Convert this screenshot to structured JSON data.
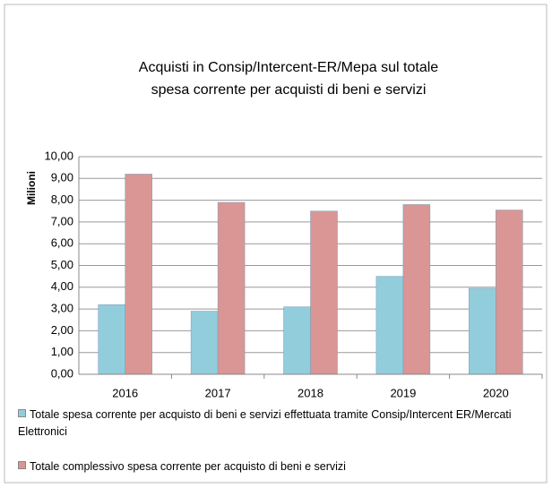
{
  "chart_data": {
    "type": "bar",
    "title": [
      "Acquisti in Consip/Intercent-ER/Mepa sul totale",
      "spesa corrente per acquisti di beni e servizi"
    ],
    "y_label": "Milioni",
    "categories": [
      "2016",
      "2017",
      "2018",
      "2019",
      "2020"
    ],
    "series": [
      {
        "name": "Totale spesa corrente per acquisto di beni e servizi effettuata tramite Consip/Intercent ER/Mercati Elettronici",
        "color": "#92cddc",
        "values": [
          3.2,
          2.9,
          3.1,
          4.5,
          3.95
        ]
      },
      {
        "name": "Totale complessivo spesa corrente per acquisto di beni e servizi",
        "color": "#d99694",
        "values": [
          9.2,
          7.9,
          7.5,
          7.8,
          7.55
        ]
      }
    ],
    "ylim": [
      0,
      10
    ],
    "yticks": [
      {
        "value": 0,
        "label": "0,00"
      },
      {
        "value": 1,
        "label": "1,00"
      },
      {
        "value": 2,
        "label": "2,00"
      },
      {
        "value": 3,
        "label": "3,00"
      },
      {
        "value": 4,
        "label": "4,00"
      },
      {
        "value": 5,
        "label": "5,00"
      },
      {
        "value": 6,
        "label": "6,00"
      },
      {
        "value": 7,
        "label": "7,00"
      },
      {
        "value": 8,
        "label": "8,00"
      },
      {
        "value": 9,
        "label": "9,00"
      },
      {
        "value": 10,
        "label": "10,00"
      }
    ],
    "grid": true
  }
}
